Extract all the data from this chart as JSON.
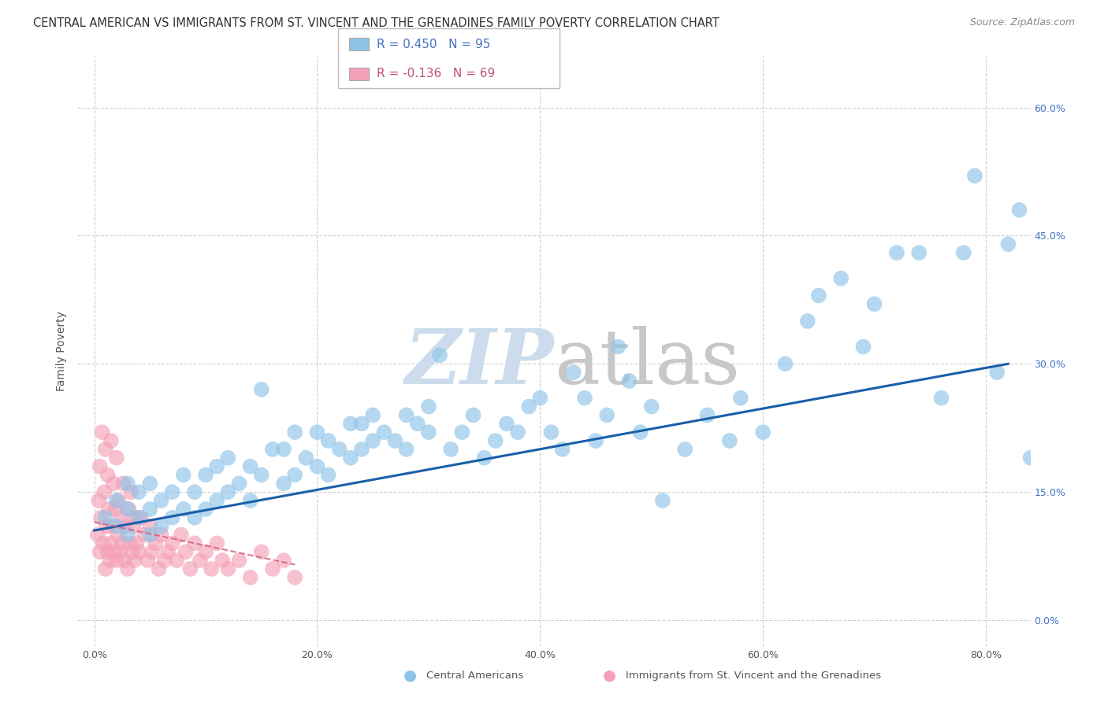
{
  "title": "CENTRAL AMERICAN VS IMMIGRANTS FROM ST. VINCENT AND THE GRENADINES FAMILY POVERTY CORRELATION CHART",
  "source": "Source: ZipAtlas.com",
  "xlabel_ticks": [
    "0.0%",
    "20.0%",
    "40.0%",
    "60.0%",
    "80.0%"
  ],
  "ylabel_ticks": [
    "0.0%",
    "15.0%",
    "30.0%",
    "45.0%",
    "60.0%"
  ],
  "xlabel_tick_vals": [
    0,
    20,
    40,
    60,
    80
  ],
  "ylabel_tick_vals": [
    0,
    15,
    30,
    45,
    60
  ],
  "ylabel": "Family Poverty",
  "xlim": [
    -1.5,
    84
  ],
  "ylim": [
    -3,
    66
  ],
  "legend_r1": "R = 0.450",
  "legend_n1": "N = 95",
  "legend_r2": "R = -0.136",
  "legend_n2": "N = 69",
  "blue_color": "#8ec4e8",
  "blue_line_color": "#1a5fa8",
  "pink_color": "#f4a0b8",
  "pink_line_color": "#d45a78",
  "grid_color": "#d0d0d0",
  "title_fontsize": 10.5,
  "source_fontsize": 9,
  "axis_label_fontsize": 10,
  "tick_fontsize": 9,
  "legend_fontsize": 11,
  "blue_scatter_x": [
    1,
    2,
    2,
    3,
    3,
    3,
    4,
    4,
    5,
    5,
    5,
    6,
    6,
    7,
    7,
    8,
    8,
    9,
    9,
    10,
    10,
    11,
    11,
    12,
    12,
    13,
    14,
    14,
    15,
    15,
    16,
    17,
    17,
    18,
    18,
    19,
    20,
    20,
    21,
    21,
    22,
    23,
    23,
    24,
    24,
    25,
    25,
    26,
    27,
    28,
    28,
    29,
    30,
    30,
    31,
    32,
    33,
    34,
    35,
    36,
    37,
    38,
    39,
    40,
    41,
    42,
    43,
    44,
    45,
    46,
    47,
    48,
    49,
    50,
    51,
    53,
    55,
    57,
    58,
    60,
    62,
    64,
    65,
    67,
    69,
    70,
    72,
    74,
    76,
    78,
    79,
    81,
    82,
    83,
    84
  ],
  "blue_scatter_y": [
    12,
    11,
    14,
    10,
    13,
    16,
    12,
    15,
    10,
    13,
    16,
    11,
    14,
    12,
    15,
    13,
    17,
    12,
    15,
    13,
    17,
    14,
    18,
    15,
    19,
    16,
    14,
    18,
    27,
    17,
    20,
    16,
    20,
    17,
    22,
    19,
    18,
    22,
    17,
    21,
    20,
    19,
    23,
    20,
    23,
    21,
    24,
    22,
    21,
    20,
    24,
    23,
    22,
    25,
    31,
    20,
    22,
    24,
    19,
    21,
    23,
    22,
    25,
    26,
    22,
    20,
    29,
    26,
    21,
    24,
    32,
    28,
    22,
    25,
    14,
    20,
    24,
    21,
    26,
    22,
    30,
    35,
    38,
    40,
    32,
    37,
    43,
    43,
    26,
    43,
    52,
    29,
    44,
    48,
    19
  ],
  "pink_scatter_x": [
    0.3,
    0.4,
    0.5,
    0.5,
    0.6,
    0.7,
    0.8,
    0.9,
    1.0,
    1.0,
    1.1,
    1.2,
    1.2,
    1.3,
    1.4,
    1.5,
    1.5,
    1.6,
    1.7,
    1.8,
    1.9,
    2.0,
    2.0,
    2.1,
    2.2,
    2.3,
    2.4,
    2.5,
    2.6,
    2.7,
    2.8,
    3.0,
    3.1,
    3.2,
    3.3,
    3.4,
    3.5,
    3.6,
    3.7,
    3.8,
    4.0,
    4.2,
    4.5,
    4.8,
    5.0,
    5.2,
    5.5,
    5.8,
    6.0,
    6.3,
    6.6,
    7.0,
    7.4,
    7.8,
    8.2,
    8.6,
    9.0,
    9.5,
    10.0,
    10.5,
    11.0,
    11.5,
    12.0,
    13.0,
    14.0,
    15.0,
    16.0,
    17.0,
    18.0
  ],
  "pink_scatter_y": [
    10,
    14,
    8,
    18,
    12,
    22,
    9,
    15,
    6,
    20,
    11,
    8,
    17,
    13,
    7,
    9,
    21,
    11,
    16,
    8,
    13,
    7,
    19,
    10,
    14,
    8,
    12,
    9,
    16,
    7,
    11,
    6,
    13,
    9,
    15,
    8,
    11,
    7,
    12,
    9,
    8,
    12,
    10,
    7,
    11,
    8,
    9,
    6,
    10,
    7,
    8,
    9,
    7,
    10,
    8,
    6,
    9,
    7,
    8,
    6,
    9,
    7,
    6,
    7,
    5,
    8,
    6,
    7,
    5
  ],
  "blue_line_x": [
    0,
    82
  ],
  "blue_line_y_start": 10.5,
  "blue_line_y_end": 30.0,
  "pink_line_x": [
    0,
    18
  ],
  "pink_line_y_start": 11.5,
  "pink_line_y_end": 6.5
}
